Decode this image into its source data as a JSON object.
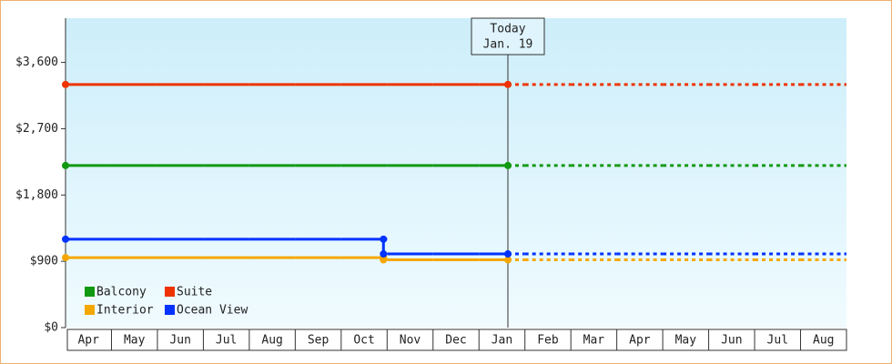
{
  "chart_data": {
    "type": "line",
    "categories": [
      "Apr",
      "May",
      "Jun",
      "Jul",
      "Aug",
      "Sep",
      "Oct",
      "Nov",
      "Dec",
      "Jan",
      "Feb",
      "Mar",
      "Apr",
      "May",
      "Jun",
      "Jul",
      "Aug"
    ],
    "series": [
      {
        "name": "Balcony",
        "color": "#119911",
        "values": [
          2200,
          2200,
          2200,
          2200,
          2200,
          2200,
          2200,
          2200,
          2200,
          2200,
          2200,
          2200,
          2200,
          2200,
          2200,
          2200,
          2200
        ]
      },
      {
        "name": "Suite",
        "color": "#ee3300",
        "values": [
          3300,
          3300,
          3300,
          3300,
          3300,
          3300,
          3300,
          3300,
          3300,
          3300,
          3300,
          3300,
          3300,
          3300,
          3300,
          3300,
          3300
        ]
      },
      {
        "name": "Interior",
        "color": "#f5a700",
        "values": [
          950,
          950,
          950,
          950,
          950,
          950,
          950,
          920,
          920,
          920,
          920,
          920,
          920,
          920,
          920,
          920,
          920
        ]
      },
      {
        "name": "Ocean View",
        "color": "#0033ff",
        "values": [
          1200,
          1200,
          1200,
          1200,
          1200,
          1200,
          1200,
          1000,
          1000,
          1000,
          1000,
          1000,
          1000,
          1000,
          1000,
          1000,
          1000
        ]
      }
    ],
    "ylim": [
      0,
      4200
    ],
    "yticks": [
      {
        "value": 0,
        "label": "$0"
      },
      {
        "value": 900,
        "label": "$900"
      },
      {
        "value": 1800,
        "label": "$1,800"
      },
      {
        "value": 2700,
        "label": "$2,700"
      },
      {
        "value": 3600,
        "label": "$3,600"
      }
    ],
    "annotation": {
      "line1": "Today",
      "line2": "Jan. 19"
    },
    "legend": "bottom-left",
    "grid": false
  }
}
